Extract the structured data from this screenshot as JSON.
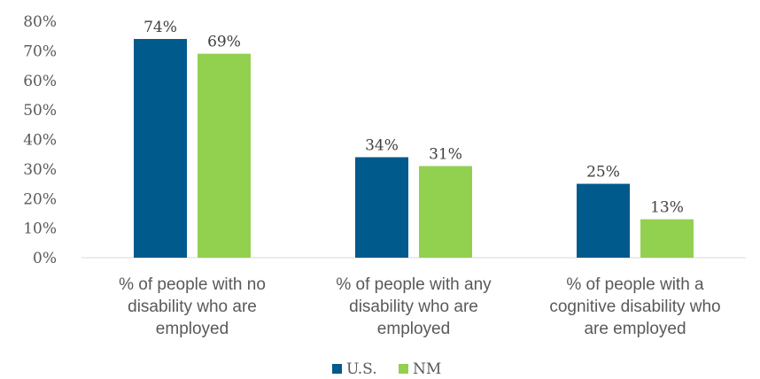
{
  "chart_data": {
    "type": "bar",
    "categories": [
      [
        "% of people with no",
        "disability who are",
        "employed"
      ],
      [
        "% of people with any",
        "disability who are",
        "employed"
      ],
      [
        "% of people with a",
        "cognitive disability who",
        "are employed"
      ]
    ],
    "series": [
      {
        "name": "U.S.",
        "color": "#005a8c",
        "values": [
          74,
          34,
          25
        ],
        "labels": [
          "74%",
          "34%",
          "25%"
        ]
      },
      {
        "name": "NM",
        "color": "#92d050",
        "values": [
          69,
          31,
          13
        ],
        "labels": [
          "69%",
          "31%",
          "13%"
        ]
      }
    ],
    "y_ticks": [
      "0%",
      "10%",
      "20%",
      "30%",
      "40%",
      "50%",
      "60%",
      "70%",
      "80%"
    ],
    "ylim": [
      0,
      80
    ],
    "grid": false,
    "legend_position": "bottom"
  }
}
